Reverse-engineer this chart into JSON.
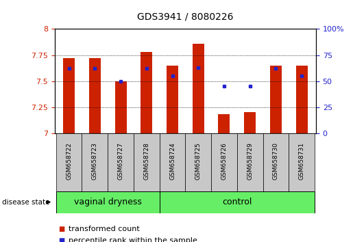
{
  "title": "GDS3941 / 8080226",
  "samples": [
    "GSM658722",
    "GSM658723",
    "GSM658727",
    "GSM658728",
    "GSM658724",
    "GSM658725",
    "GSM658726",
    "GSM658729",
    "GSM658730",
    "GSM658731"
  ],
  "group_labels": [
    "vaginal dryness",
    "control"
  ],
  "vd_count": 4,
  "transformed_count": [
    7.72,
    7.72,
    7.5,
    7.78,
    7.65,
    7.86,
    7.18,
    7.2,
    7.65,
    7.65
  ],
  "percentile_rank": [
    62,
    62,
    50,
    62,
    55,
    63,
    45,
    45,
    62,
    55
  ],
  "ylim_left": [
    7.0,
    8.0
  ],
  "ylim_right": [
    0,
    100
  ],
  "yticks_left": [
    7.0,
    7.25,
    7.5,
    7.75,
    8.0
  ],
  "ytick_labels_left": [
    "7",
    "7.25",
    "7.5",
    "7.75",
    "8"
  ],
  "yticks_right": [
    0,
    25,
    50,
    75,
    100
  ],
  "ytick_labels_right": [
    "0",
    "25",
    "50",
    "75",
    "100%"
  ],
  "bar_color": "#CC2200",
  "dot_color": "#2222CC",
  "bar_width": 0.45,
  "label_area_color": "#C8C8C8",
  "group_color": "#66EE66",
  "left_axis_color": "#CC2200",
  "right_axis_color": "#2222CC",
  "title_fontsize": 10,
  "tick_fontsize": 8,
  "sample_fontsize": 6.5,
  "group_fontsize": 9,
  "legend_fontsize": 8
}
